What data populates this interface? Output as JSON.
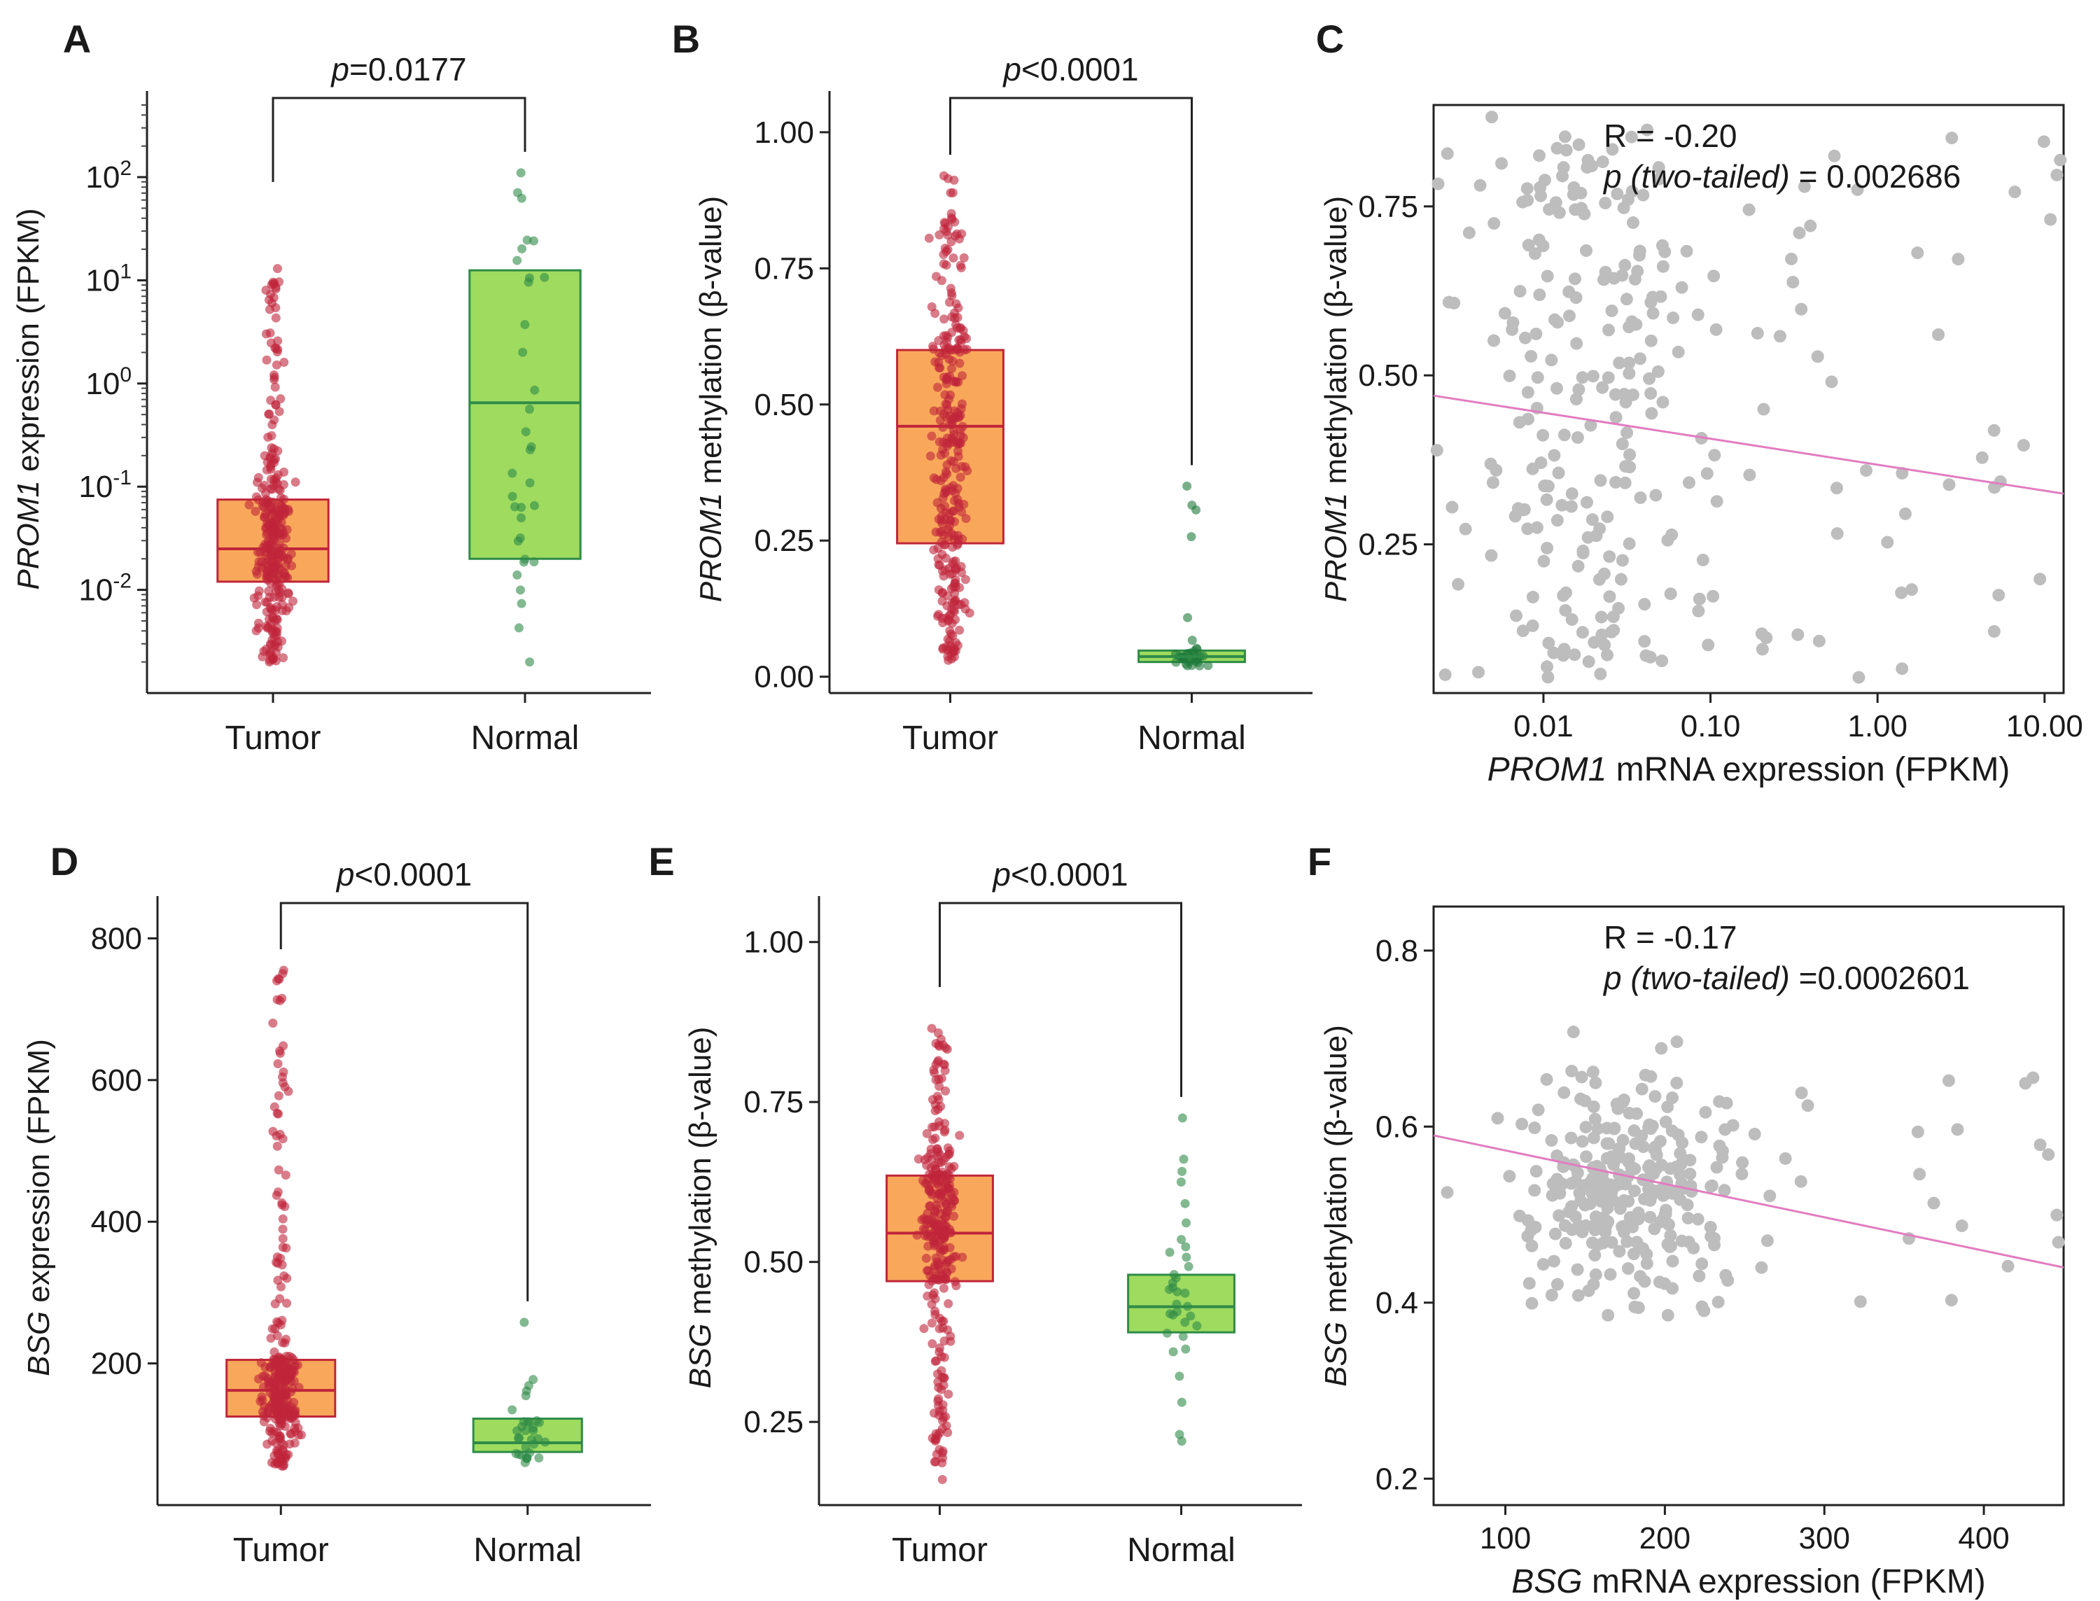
{
  "chart_data": [
    {
      "panel": "A",
      "type": "box",
      "scale": "log10",
      "ylim": [
        0.001,
        500
      ],
      "ylabel_gene": "PROM1",
      "ylabel_rest": "expression (FPKM)",
      "yticks": [
        {
          "value": 0.01,
          "base": "10",
          "exp": "-2"
        },
        {
          "value": 0.1,
          "base": "10",
          "exp": "-1"
        },
        {
          "value": 1,
          "base": "10",
          "exp": "0"
        },
        {
          "value": 10,
          "base": "10",
          "exp": "1"
        },
        {
          "value": 100,
          "base": "10",
          "exp": "2"
        }
      ],
      "categories": [
        "Tumor",
        "Normal"
      ],
      "pvalue_p": "p",
      "pvalue_rest": "=0.0177",
      "groups": [
        {
          "name": "Tumor",
          "min": 0.002,
          "q1": 0.012,
          "median": 0.025,
          "q3": 0.075,
          "max": 13,
          "fill": "#f9a85b",
          "stroke": "#c0253a",
          "dot": "#c0253a",
          "n": 300
        },
        {
          "name": "Normal",
          "min": 0.002,
          "q1": 0.02,
          "median": 0.65,
          "q3": 12.5,
          "max": 110,
          "fill": "#9fdb5f",
          "stroke": "#2e8b48",
          "dot": "#2e8b48",
          "n": 34
        }
      ]
    },
    {
      "panel": "B",
      "type": "box",
      "scale": "linear",
      "ylim": [
        -0.03,
        1.05
      ],
      "ylabel_gene": "PROM1",
      "ylabel_rest": "methylation (β-value)",
      "yticks": [
        {
          "value": 0.0,
          "label": "0.00"
        },
        {
          "value": 0.25,
          "label": "0.25"
        },
        {
          "value": 0.5,
          "label": "0.50"
        },
        {
          "value": 0.75,
          "label": "0.75"
        },
        {
          "value": 1.0,
          "label": "1.00"
        }
      ],
      "categories": [
        "Tumor",
        "Normal"
      ],
      "pvalue_p": "p",
      "pvalue_rest": "<0.0001",
      "groups": [
        {
          "name": "Tumor",
          "min": 0.03,
          "q1": 0.245,
          "median": 0.46,
          "q3": 0.6,
          "max": 0.92,
          "fill": "#f9a85b",
          "stroke": "#c0253a",
          "dot": "#c0253a",
          "n": 300
        },
        {
          "name": "Normal",
          "min": 0.02,
          "q1": 0.027,
          "median": 0.037,
          "q3": 0.048,
          "max": 0.35,
          "fill": "#9fdb5f",
          "stroke": "#2e8b48",
          "dot": "#1e7a3a",
          "n": 32
        }
      ]
    },
    {
      "panel": "C",
      "type": "scatter",
      "xscale": "log10",
      "xlim": [
        0.0022,
        13
      ],
      "ylim": [
        0.03,
        0.9
      ],
      "xticks": [
        {
          "value": 0.01,
          "label": "0.01"
        },
        {
          "value": 0.1,
          "label": "0.10"
        },
        {
          "value": 1,
          "label": "1.00"
        },
        {
          "value": 10,
          "label": "10.00"
        }
      ],
      "yticks": [
        {
          "value": 0.25,
          "label": "0.25"
        },
        {
          "value": 0.5,
          "label": "0.50"
        },
        {
          "value": 0.75,
          "label": "0.75"
        }
      ],
      "xlabel_gene": "PROM1",
      "xlabel_rest": "mRNA expression (FPKM)",
      "ylabel_gene": "PROM1",
      "ylabel_rest": "methylation (β-value)",
      "r_label": "R = -0.20",
      "p_label": "p (two-tailed)",
      "p_value": "= 0.002686",
      "fit": {
        "x1": 0.0022,
        "y1": 0.47,
        "x2": 13,
        "y2": 0.325,
        "color": "#e27cc0"
      },
      "point_color": "#bdbdbd",
      "n_points": 280
    },
    {
      "panel": "D",
      "type": "box",
      "scale": "linear",
      "ylim": [
        0,
        840
      ],
      "ylabel_gene": "BSG",
      "ylabel_rest": "expression (FPKM)",
      "yticks": [
        {
          "value": 200,
          "label": "200"
        },
        {
          "value": 400,
          "label": "400"
        },
        {
          "value": 600,
          "label": "600"
        },
        {
          "value": 800,
          "label": "800"
        }
      ],
      "categories": [
        "Tumor",
        "Normal"
      ],
      "pvalue_p": "p",
      "pvalue_rest": "<0.0001",
      "groups": [
        {
          "name": "Tumor",
          "min": 55,
          "q1": 125,
          "median": 162,
          "q3": 205,
          "max": 755,
          "fill": "#f9a85b",
          "stroke": "#c0253a",
          "dot": "#c0253a",
          "n": 300
        },
        {
          "name": "Normal",
          "min": 60,
          "q1": 75,
          "median": 88,
          "q3": 122,
          "max": 258,
          "fill": "#9fdb5f",
          "stroke": "#2e8b48",
          "dot": "#2e8b48",
          "n": 32
        }
      ]
    },
    {
      "panel": "E",
      "type": "box",
      "scale": "linear",
      "ylim": [
        0.12,
        1.05
      ],
      "ylabel_gene": "BSG",
      "ylabel_rest": "methylation (β-value)",
      "yticks": [
        {
          "value": 0.25,
          "label": "0.25"
        },
        {
          "value": 0.5,
          "label": "0.50"
        },
        {
          "value": 0.75,
          "label": "0.75"
        },
        {
          "value": 1.0,
          "label": "1.00"
        }
      ],
      "categories": [
        "Tumor",
        "Normal"
      ],
      "pvalue_p": "p",
      "pvalue_rest": "<0.0001",
      "groups": [
        {
          "name": "Tumor",
          "min": 0.16,
          "q1": 0.47,
          "median": 0.545,
          "q3": 0.635,
          "max": 0.865,
          "fill": "#f9a85b",
          "stroke": "#c0253a",
          "dot": "#c0253a",
          "n": 300
        },
        {
          "name": "Normal",
          "min": 0.22,
          "q1": 0.39,
          "median": 0.43,
          "q3": 0.48,
          "max": 0.725,
          "fill": "#9fdb5f",
          "stroke": "#2e8b48",
          "dot": "#2e8b48",
          "n": 34
        }
      ]
    },
    {
      "panel": "F",
      "type": "scatter",
      "xscale": "linear",
      "xlim": [
        55,
        450
      ],
      "ylim": [
        0.17,
        0.85
      ],
      "xticks": [
        {
          "value": 100,
          "label": "100"
        },
        {
          "value": 200,
          "label": "200"
        },
        {
          "value": 300,
          "label": "300"
        },
        {
          "value": 400,
          "label": "400"
        }
      ],
      "yticks": [
        {
          "value": 0.2,
          "label": "0.2"
        },
        {
          "value": 0.4,
          "label": "0.4"
        },
        {
          "value": 0.6,
          "label": "0.6"
        },
        {
          "value": 0.8,
          "label": "0.8"
        }
      ],
      "xlabel_gene": "BSG",
      "xlabel_rest": "mRNA expression (FPKM)",
      "ylabel_gene": "BSG",
      "ylabel_rest": "methylation (β-value)",
      "r_label": "R = -0.17",
      "p_label": "p (two-tailed)",
      "p_value": "=0.0002601",
      "fit": {
        "x1": 55,
        "y1": 0.59,
        "x2": 450,
        "y2": 0.44,
        "color": "#e27cc0"
      },
      "point_color": "#bdbdbd",
      "n_points": 300
    }
  ]
}
